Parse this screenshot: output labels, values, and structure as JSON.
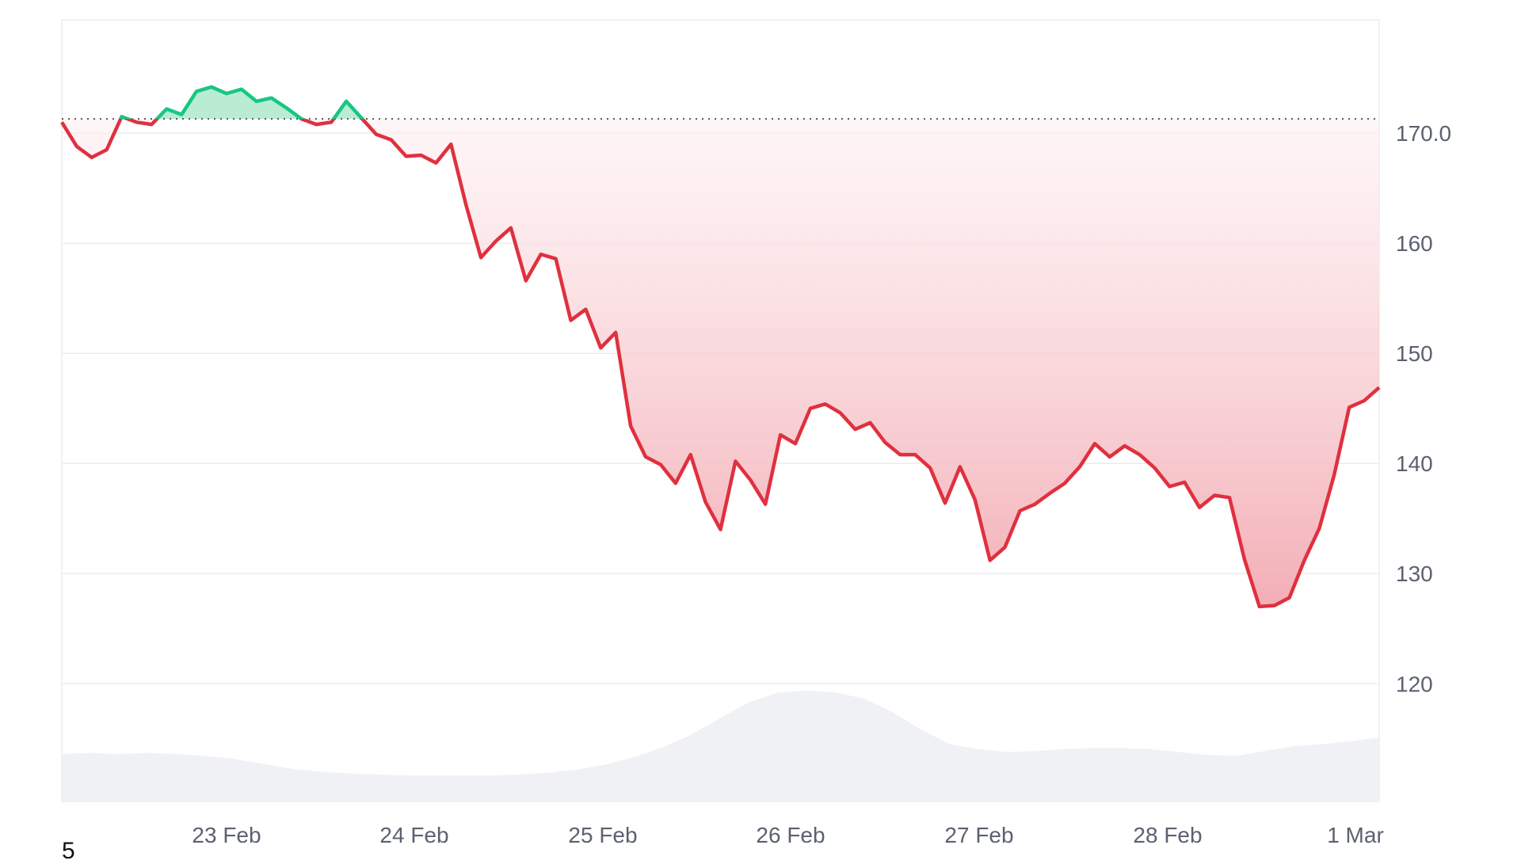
{
  "footer": {
    "corner_label": "5"
  },
  "colors": {
    "up_line": "#16c784",
    "up_fill": "#b9ecd3",
    "down_line": "#e0303f",
    "down_fill_top": "#fff5f6",
    "down_fill_bottom": "#f2aab2",
    "volume_fill": "#eff1f4",
    "grid": "#ececf0",
    "baseline_dots": "#555555",
    "tick_text": "#5b6170"
  },
  "chart_data": {
    "type": "line",
    "title": "",
    "xlabel": "",
    "ylabel": "",
    "x_domain": [
      "22 Feb",
      "1 Mar"
    ],
    "x_ticks": [
      "23 Feb",
      "24 Feb",
      "25 Feb",
      "26 Feb",
      "27 Feb",
      "28 Feb",
      "1 Mar"
    ],
    "y_ticks": [
      "120",
      "130",
      "140",
      "150",
      "160",
      "170.0"
    ],
    "ylim": [
      109.3,
      180.3
    ],
    "baseline_value": 171.3,
    "grid": true,
    "series": [
      {
        "x": [
          "22 Feb 00:00",
          "22 Feb 02:00",
          "22 Feb 04:00",
          "22 Feb 06:00",
          "22 Feb 08:00",
          "22 Feb 10:00",
          "22 Feb 12:00",
          "22 Feb 14:00",
          "22 Feb 16:00",
          "22 Feb 18:00",
          "22 Feb 20:00",
          "22 Feb 22:00",
          "23 Feb 00:00",
          "23 Feb 02:00",
          "23 Feb 04:00",
          "23 Feb 06:00",
          "23 Feb 08:00",
          "23 Feb 10:00",
          "23 Feb 12:00",
          "23 Feb 14:00",
          "23 Feb 16:00",
          "23 Feb 18:00",
          "23 Feb 20:00",
          "23 Feb 22:00",
          "24 Feb 00:00",
          "24 Feb 02:00",
          "24 Feb 04:00",
          "24 Feb 06:00",
          "24 Feb 08:00",
          "24 Feb 10:00",
          "24 Feb 12:00",
          "24 Feb 14:00",
          "24 Feb 16:00",
          "24 Feb 18:00",
          "24 Feb 20:00",
          "24 Feb 22:00",
          "25 Feb 00:00",
          "25 Feb 02:00",
          "25 Feb 04:00",
          "25 Feb 06:00",
          "25 Feb 08:00",
          "25 Feb 10:00",
          "25 Feb 12:00",
          "25 Feb 14:00",
          "25 Feb 16:00",
          "25 Feb 18:00",
          "25 Feb 20:00",
          "25 Feb 22:00",
          "26 Feb 00:00",
          "26 Feb 02:00",
          "26 Feb 04:00",
          "26 Feb 06:00",
          "26 Feb 08:00",
          "26 Feb 10:00",
          "26 Feb 12:00",
          "26 Feb 14:00",
          "26 Feb 16:00",
          "26 Feb 18:00",
          "26 Feb 20:00",
          "26 Feb 22:00",
          "27 Feb 00:00",
          "27 Feb 02:00",
          "27 Feb 04:00",
          "27 Feb 06:00",
          "27 Feb 08:00",
          "27 Feb 10:00",
          "27 Feb 12:00",
          "27 Feb 14:00",
          "27 Feb 16:00",
          "27 Feb 18:00",
          "27 Feb 20:00",
          "27 Feb 22:00",
          "28 Feb 00:00",
          "28 Feb 02:00",
          "28 Feb 04:00",
          "28 Feb 06:00",
          "28 Feb 08:00",
          "28 Feb 10:00",
          "28 Feb 12:00",
          "28 Feb 14:00",
          "28 Feb 16:00",
          "28 Feb 18:00",
          "28 Feb 20:00",
          "28 Feb 22:00",
          "1 Mar 00:00",
          "1 Mar 02:00",
          "1 Mar 04:00",
          "1 Mar 06:00",
          "1 Mar 08:00"
        ],
        "values": [
          171.0,
          168.8,
          167.8,
          168.5,
          171.5,
          171.0,
          170.8,
          172.2,
          171.7,
          173.8,
          174.2,
          173.6,
          174.0,
          172.9,
          173.2,
          172.3,
          171.3,
          170.8,
          171.0,
          172.9,
          171.4,
          169.9,
          169.4,
          167.9,
          168.0,
          167.3,
          169.0,
          163.5,
          158.7,
          160.2,
          161.4,
          156.6,
          159.0,
          158.6,
          153.0,
          154.0,
          150.5,
          151.9,
          143.4,
          140.6,
          139.9,
          138.2,
          140.8,
          136.5,
          134.0,
          140.2,
          138.5,
          136.3,
          142.6,
          141.8,
          145.0,
          145.4,
          144.6,
          143.1,
          143.7,
          141.9,
          140.8,
          140.8,
          139.6,
          136.4,
          139.7,
          136.7,
          131.2,
          132.4,
          135.7,
          136.3,
          137.3,
          138.2,
          139.7,
          141.8,
          140.6,
          141.6,
          140.8,
          139.6,
          137.9,
          138.3,
          136.0,
          137.1,
          136.9,
          131.3,
          127.0,
          127.1,
          127.8,
          131.2,
          134.1,
          139.0,
          145.1,
          145.7,
          146.9
        ]
      }
    ],
    "volume": {
      "values": [
        0.35,
        0.36,
        0.35,
        0.36,
        0.35,
        0.33,
        0.3,
        0.25,
        0.2,
        0.17,
        0.15,
        0.14,
        0.13,
        0.13,
        0.13,
        0.13,
        0.14,
        0.16,
        0.19,
        0.24,
        0.32,
        0.42,
        0.55,
        0.72,
        0.88,
        0.98,
        1.0,
        0.98,
        0.92,
        0.78,
        0.6,
        0.45,
        0.4,
        0.37,
        0.38,
        0.4,
        0.41,
        0.41,
        0.4,
        0.37,
        0.34,
        0.33,
        0.38,
        0.43,
        0.45,
        0.48,
        0.52
      ]
    }
  }
}
